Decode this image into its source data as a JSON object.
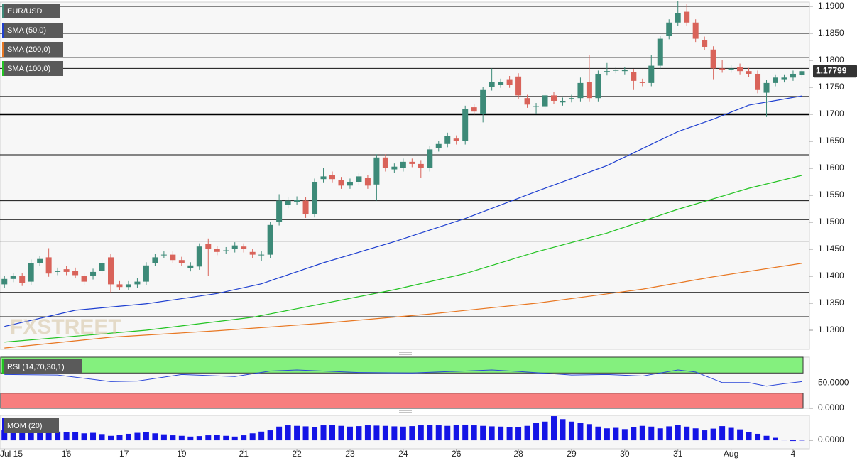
{
  "chart_data": [
    {
      "type": "candlestick",
      "symbol": "EUR/USD",
      "watermark": "FXSTREET",
      "up_color": "#3d8a78",
      "down_color": "#d9635a",
      "open": [
        1.1385,
        1.1395,
        1.14,
        1.139,
        1.1425,
        1.1435,
        1.1408,
        1.1413,
        1.141,
        1.14,
        1.14,
        1.141,
        1.1435,
        1.1385,
        1.138,
        1.1385,
        1.139,
        1.1425,
        1.144,
        1.144,
        1.143,
        1.1415,
        1.1418,
        1.146,
        1.145,
        1.1447,
        1.145,
        1.1455,
        1.1445,
        1.144,
        1.144,
        1.15,
        1.1532,
        1.1538,
        1.154,
        1.1515,
        1.158,
        1.1588,
        1.1578,
        1.1568,
        1.1575,
        1.1582,
        1.157,
        1.162,
        1.1598,
        1.16,
        1.1612,
        1.1608,
        1.16,
        1.1637,
        1.1645,
        1.1655,
        1.165,
        1.1713,
        1.17,
        1.175,
        1.1755,
        1.1765,
        1.177,
        1.173,
        1.1715,
        1.1715,
        1.1735,
        1.1722,
        1.1728,
        1.173,
        1.176,
        1.173,
        1.1778,
        1.1782,
        1.178,
        1.1778,
        1.176,
        1.1758,
        1.179,
        1.1845,
        1.187,
        1.189,
        1.187,
        1.1838,
        1.182,
        1.1785,
        1.1783,
        1.1788,
        1.178,
        1.1775,
        1.174,
        1.1758,
        1.1765,
        1.1768,
        1.1773
      ],
      "high": [
        1.1401,
        1.1406,
        1.1406,
        1.1431,
        1.1438,
        1.1452,
        1.1416,
        1.1419,
        1.1416,
        1.1406,
        1.1414,
        1.1431,
        1.1441,
        1.1391,
        1.1391,
        1.1396,
        1.1426,
        1.1441,
        1.1446,
        1.1446,
        1.1436,
        1.1426,
        1.1461,
        1.147,
        1.1456,
        1.1454,
        1.1463,
        1.1461,
        1.1451,
        1.1446,
        1.1501,
        1.1552,
        1.1546,
        1.1548,
        1.1546,
        1.1581,
        1.16,
        1.1594,
        1.1584,
        1.1581,
        1.1591,
        1.1588,
        1.1626,
        1.1626,
        1.1609,
        1.1618,
        1.1618,
        1.1614,
        1.1641,
        1.1651,
        1.1666,
        1.1661,
        1.1716,
        1.1719,
        1.1751,
        1.1785,
        1.1766,
        1.1771,
        1.1776,
        1.1736,
        1.1721,
        1.1741,
        1.1741,
        1.1731,
        1.1736,
        1.1768,
        1.181,
        1.1781,
        1.1795,
        1.1788,
        1.1788,
        1.1784,
        1.1766,
        1.181,
        1.1846,
        1.1876,
        1.191,
        1.1905,
        1.1876,
        1.1844,
        1.1826,
        1.18,
        1.1791,
        1.1794,
        1.1786,
        1.1781,
        1.1764,
        1.1774,
        1.1774,
        1.1781,
        1.1786
      ],
      "low": [
        1.1379,
        1.1389,
        1.1382,
        1.1384,
        1.1419,
        1.1399,
        1.1402,
        1.1402,
        1.1396,
        1.1384,
        1.1394,
        1.1404,
        1.137,
        1.1374,
        1.1374,
        1.1379,
        1.1384,
        1.1419,
        1.1434,
        1.1424,
        1.1419,
        1.1409,
        1.1412,
        1.14,
        1.1439,
        1.1441,
        1.1444,
        1.1444,
        1.1434,
        1.1428,
        1.1434,
        1.1494,
        1.1526,
        1.1532,
        1.1508,
        1.1509,
        1.1574,
        1.1574,
        1.1562,
        1.1562,
        1.1569,
        1.1562,
        1.154,
        1.1594,
        1.1592,
        1.1594,
        1.1602,
        1.1582,
        1.1594,
        1.1631,
        1.1639,
        1.1644,
        1.1644,
        1.1699,
        1.1685,
        1.1744,
        1.1749,
        1.1749,
        1.1729,
        1.1712,
        1.17,
        1.1709,
        1.1719,
        1.1716,
        1.1722,
        1.1724,
        1.1724,
        1.1724,
        1.1772,
        1.1776,
        1.1774,
        1.1745,
        1.1752,
        1.1752,
        1.1784,
        1.1839,
        1.1864,
        1.1864,
        1.1834,
        1.1819,
        1.1765,
        1.1777,
        1.1777,
        1.1774,
        1.1769,
        1.1739,
        1.1695,
        1.1752,
        1.1759,
        1.1762,
        1.1767
      ],
      "close": [
        1.1395,
        1.14,
        1.1388,
        1.1425,
        1.1432,
        1.1405,
        1.141,
        1.1408,
        1.1402,
        1.139,
        1.1408,
        1.1425,
        1.1385,
        1.138,
        1.1385,
        1.139,
        1.142,
        1.1435,
        1.144,
        1.143,
        1.1425,
        1.142,
        1.1455,
        1.145,
        1.1445,
        1.1448,
        1.1457,
        1.145,
        1.144,
        1.144,
        1.1495,
        1.154,
        1.154,
        1.1542,
        1.1515,
        1.1575,
        1.1585,
        1.158,
        1.1568,
        1.1575,
        1.1585,
        1.1568,
        1.162,
        1.16,
        1.1603,
        1.1612,
        1.1608,
        1.16,
        1.1635,
        1.1645,
        1.166,
        1.165,
        1.171,
        1.1705,
        1.1745,
        1.176,
        1.176,
        1.1755,
        1.1735,
        1.1718,
        1.1715,
        1.1735,
        1.1725,
        1.1725,
        1.173,
        1.1758,
        1.173,
        1.1775,
        1.178,
        1.1782,
        1.1782,
        1.1762,
        1.1758,
        1.179,
        1.184,
        1.187,
        1.1888,
        1.187,
        1.184,
        1.1825,
        1.1785,
        1.1783,
        1.1785,
        1.178,
        1.1775,
        1.1745,
        1.1758,
        1.1768,
        1.1768,
        1.1775,
        1.17799
      ],
      "series": [
        {
          "name": "SMA (50,0)",
          "color": "#1e3fd0",
          "x": [
            0,
            8,
            16,
            24,
            29,
            36,
            44,
            52,
            60,
            68,
            76,
            80,
            84,
            90
          ],
          "values": [
            1.1307,
            1.1337,
            1.1349,
            1.1368,
            1.1386,
            1.1425,
            1.1464,
            1.1507,
            1.1557,
            1.1605,
            1.1668,
            1.1691,
            1.1717,
            1.1734
          ]
        },
        {
          "name": "SMA (200,0)",
          "color": "#e87722",
          "x": [
            0,
            12,
            24,
            36,
            48,
            60,
            72,
            80,
            90
          ],
          "values": [
            1.1267,
            1.1287,
            1.1299,
            1.1313,
            1.133,
            1.135,
            1.1376,
            1.1399,
            1.1424
          ]
        },
        {
          "name": "SMA (100,0)",
          "color": "#22c322",
          "x": [
            0,
            16,
            28,
            34,
            44,
            52,
            60,
            68,
            76,
            84,
            90
          ],
          "values": [
            1.1278,
            1.13,
            1.1324,
            1.1343,
            1.1375,
            1.1405,
            1.1445,
            1.148,
            1.1524,
            1.1563,
            1.1587
          ]
        }
      ],
      "levels": [
        1.19,
        1.185,
        1.1805,
        1.1785,
        1.1733,
        1.1625,
        1.154,
        1.1505,
        1.1465,
        1.137,
        1.1325,
        1.1302
      ],
      "key_level": 1.17,
      "ylim": [
        1.12645,
        1.19118
      ],
      "yticks": [
        {
          "value": 1.19,
          "label": "1.1900"
        },
        {
          "value": 1.185,
          "label": "1.1850"
        },
        {
          "value": 1.18,
          "label": "1.1800"
        },
        {
          "value": 1.175,
          "label": "1.1750"
        },
        {
          "value": 1.17,
          "label": "1.1700"
        },
        {
          "value": 1.165,
          "label": "1.1650"
        },
        {
          "value": 1.16,
          "label": "1.1600"
        },
        {
          "value": 1.155,
          "label": "1.1550"
        },
        {
          "value": 1.15,
          "label": "1.1500"
        },
        {
          "value": 1.145,
          "label": "1.1450"
        },
        {
          "value": 1.14,
          "label": "1.1400"
        },
        {
          "value": 1.135,
          "label": "1.1350"
        },
        {
          "value": 1.13,
          "label": "1.1300"
        }
      ],
      "xticks": [
        {
          "value": 0,
          "label": "Jul 15"
        },
        {
          "value": 7,
          "label": "16"
        },
        {
          "value": 13.5,
          "label": "17"
        },
        {
          "value": 20,
          "label": "19"
        },
        {
          "value": 27,
          "label": "21"
        },
        {
          "value": 33,
          "label": "22"
        },
        {
          "value": 39,
          "label": "23"
        },
        {
          "value": 45,
          "label": "24"
        },
        {
          "value": 51,
          "label": "26"
        },
        {
          "value": 58,
          "label": "28"
        },
        {
          "value": 64,
          "label": "29"
        },
        {
          "value": 70,
          "label": "30"
        },
        {
          "value": 76,
          "label": "31"
        },
        {
          "value": 82,
          "label": "Aug"
        },
        {
          "value": 89,
          "label": "4"
        }
      ]
    },
    {
      "type": "line",
      "legend": "RSI (14,70,30,1)",
      "color": "#2a46d8",
      "x": [
        0,
        6,
        12,
        15,
        20,
        26,
        30,
        33,
        40,
        46,
        52,
        55,
        58,
        64,
        68,
        72,
        76,
        78,
        81,
        84,
        86,
        88,
        90
      ],
      "values": [
        67,
        66,
        53,
        54,
        67,
        63,
        74,
        76,
        71,
        70,
        74,
        76,
        73,
        66,
        67,
        64,
        76,
        72,
        51,
        51,
        44,
        49,
        53
      ],
      "upper_band": 70,
      "lower_band": 30,
      "ylim": [
        0,
        101.4
      ],
      "yticks": [
        {
          "value": 50,
          "label": "50.0000"
        },
        {
          "value": 0,
          "label": "0.0000"
        }
      ]
    },
    {
      "type": "bar",
      "legend": "MOM (20)",
      "color": "#1414e6",
      "values": [
        0.004,
        0.0038,
        0.0041,
        0.0043,
        0.004,
        0.0038,
        0.0035,
        0.0033,
        0.0032,
        0.0028,
        0.003,
        0.0025,
        0.0018,
        0.0022,
        0.0026,
        0.003,
        0.0033,
        0.0028,
        0.0024,
        0.002,
        0.0018,
        0.0015,
        0.0017,
        0.002,
        0.0022,
        0.0018,
        0.0015,
        0.002,
        0.0028,
        0.0035,
        0.004,
        0.0055,
        0.006,
        0.0058,
        0.0056,
        0.0052,
        0.006,
        0.0062,
        0.0058,
        0.0055,
        0.0057,
        0.006,
        0.0059,
        0.0058,
        0.0056,
        0.0055,
        0.0057,
        0.006,
        0.0062,
        0.006,
        0.0058,
        0.0062,
        0.0063,
        0.006,
        0.0058,
        0.0056,
        0.0055,
        0.0052,
        0.0054,
        0.0058,
        0.007,
        0.0075,
        0.0097,
        0.0085,
        0.0075,
        0.007,
        0.0065,
        0.0055,
        0.0048,
        0.005,
        0.0045,
        0.0052,
        0.0058,
        0.0055,
        0.0048,
        0.0056,
        0.0062,
        0.0055,
        0.0048,
        0.004,
        0.0047,
        0.0057,
        0.005,
        0.0044,
        0.0034,
        0.0026,
        0.0018,
        0.001,
        0.0003,
        -0.0002,
        0.0002
      ],
      "ylim": [
        -0.0034,
        0.01
      ],
      "yticks": [
        {
          "value": 0,
          "label": "0.0000"
        }
      ]
    }
  ]
}
